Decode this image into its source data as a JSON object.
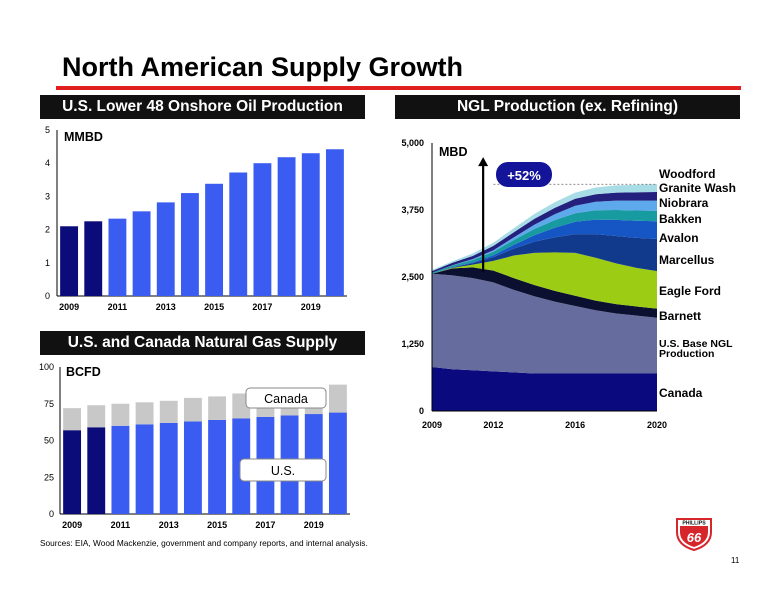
{
  "title": "North American Supply Growth",
  "source_note": "Sources: EIA, Wood Mackenzie, government and company reports, and internal analysis.",
  "page_number": "11",
  "logo": {
    "text_top": "PHILLIPS",
    "text_main": "66",
    "color": "#d6262b"
  },
  "colors": {
    "accent_red": "#e02020",
    "dark_navy": "#0b0b7a",
    "bright_blue": "#3a5cf0",
    "gray": "#c8c8c8"
  },
  "chart_data": [
    {
      "type": "bar",
      "title": "U.S. Lower 48 Onshore Oil Production",
      "unit_label": "MMBD",
      "categories": [
        "2009",
        "2010",
        "2011",
        "2012",
        "2013",
        "2014",
        "2015",
        "2016",
        "2017",
        "2018",
        "2019",
        "2020"
      ],
      "x_tick_labels": [
        "2009",
        "2011",
        "2013",
        "2015",
        "2017",
        "2019"
      ],
      "values": [
        2.1,
        2.25,
        2.33,
        2.55,
        2.82,
        3.1,
        3.38,
        3.72,
        4.0,
        4.18,
        4.3,
        4.42
      ],
      "historical_count": 2,
      "ylim": [
        0,
        5
      ],
      "y_ticks": [
        "0",
        "1",
        "2",
        "3",
        "4",
        "5"
      ],
      "grid": false
    },
    {
      "type": "bar",
      "title": "U.S. and Canada Natural Gas Supply",
      "unit_label": "BCFD",
      "categories": [
        "2009",
        "2010",
        "2011",
        "2012",
        "2013",
        "2014",
        "2015",
        "2016",
        "2017",
        "2018",
        "2019",
        "2020"
      ],
      "x_tick_labels": [
        "2009",
        "2011",
        "2013",
        "2015",
        "2017",
        "2019"
      ],
      "series": [
        {
          "name": "U.S.",
          "values": [
            57,
            59,
            60,
            61,
            62,
            63,
            64,
            65,
            66,
            67,
            68,
            69
          ]
        },
        {
          "name": "Canada",
          "values": [
            15,
            15,
            15,
            15,
            15,
            16,
            16,
            17,
            17,
            18,
            18,
            19
          ]
        }
      ],
      "historical_count": 2,
      "stacked": true,
      "ylim": [
        0,
        100
      ],
      "y_ticks": [
        "0",
        "25",
        "50",
        "75",
        "100"
      ],
      "grid": false
    },
    {
      "type": "area",
      "title": "NGL Production (ex. Refining)",
      "unit_label": "MBD",
      "annotation": "+52%",
      "x": [
        2009,
        2010,
        2011,
        2012,
        2013,
        2014,
        2015,
        2016,
        2017,
        2018,
        2019,
        2020
      ],
      "x_tick_labels": [
        "2009",
        "2012",
        "2016",
        "2020"
      ],
      "xlim": [
        2009,
        2020
      ],
      "ylim": [
        0,
        5000
      ],
      "y_ticks": [
        "0",
        "1,250",
        "2,500",
        "3,750",
        "5,000"
      ],
      "stacked": true,
      "grid": false,
      "series": [
        {
          "name": "Canada",
          "color": "#0a0a7e",
          "values": [
            820,
            780,
            760,
            740,
            720,
            700,
            700,
            700,
            700,
            700,
            700,
            700
          ]
        },
        {
          "name": "U.S. Base NGL Production",
          "color": "#666c9e",
          "values": [
            1740,
            1750,
            1720,
            1660,
            1540,
            1440,
            1340,
            1260,
            1180,
            1120,
            1080,
            1040
          ]
        },
        {
          "name": "Barnett",
          "color": "#0c1030",
          "values": [
            0,
            130,
            200,
            220,
            220,
            210,
            200,
            190,
            180,
            175,
            170,
            170
          ]
        },
        {
          "name": "Eagle Ford",
          "color": "#9ccc14",
          "values": [
            0,
            10,
            50,
            180,
            420,
            600,
            720,
            800,
            800,
            760,
            720,
            700
          ]
        },
        {
          "name": "Marcellus",
          "color": "#123a8c",
          "values": [
            0,
            10,
            30,
            70,
            130,
            210,
            280,
            350,
            440,
            510,
            560,
            600
          ]
        },
        {
          "name": "Avalon",
          "color": "#1656c4",
          "values": [
            0,
            5,
            15,
            35,
            70,
            120,
            180,
            230,
            270,
            300,
            320,
            330
          ]
        },
        {
          "name": "Bakken",
          "color": "#179aa0",
          "values": [
            20,
            30,
            45,
            65,
            90,
            115,
            140,
            160,
            175,
            185,
            190,
            195
          ]
        },
        {
          "name": "Niobrara",
          "color": "#5ea8ec",
          "values": [
            0,
            5,
            15,
            30,
            50,
            80,
            110,
            140,
            160,
            175,
            185,
            190
          ]
        },
        {
          "name": "Granite Wash",
          "color": "#23207e",
          "values": [
            30,
            45,
            60,
            80,
            95,
            110,
            120,
            130,
            140,
            150,
            155,
            160
          ]
        },
        {
          "name": "Woodford",
          "color": "#a8dce6",
          "values": [
            20,
            30,
            45,
            60,
            75,
            90,
            105,
            115,
            125,
            135,
            140,
            145
          ]
        }
      ]
    }
  ]
}
